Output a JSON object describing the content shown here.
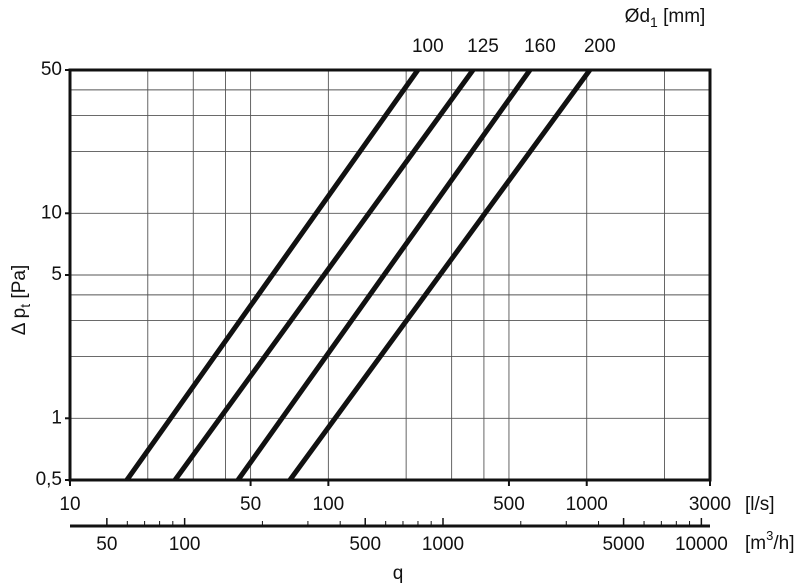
{
  "chart_data": {
    "type": "line",
    "log_x": true,
    "log_y": true,
    "xlim": [
      10,
      3000
    ],
    "xticks": [
      10,
      50,
      100,
      500,
      1000,
      3000
    ],
    "xgrid": [
      20,
      30,
      40,
      50,
      100,
      200,
      300,
      400,
      500,
      1000,
      2000
    ],
    "x_unit": "[l/s]",
    "x2lim": [
      36,
      10800
    ],
    "x2ticks": [
      50,
      100,
      500,
      1000,
      5000,
      10000
    ],
    "x2minor": [
      60,
      70,
      80,
      90,
      200,
      300,
      400,
      600,
      700,
      800,
      900,
      2000,
      3000,
      4000,
      6000,
      7000,
      8000,
      9000
    ],
    "x2_unit": {
      "text": "[m",
      "sup": "3",
      "suffix": "/h]"
    },
    "x_label": "q",
    "ylim": [
      0.5,
      50
    ],
    "yticks": [
      {
        "value": 0.5,
        "label": "0,5"
      },
      1,
      5,
      10,
      50
    ],
    "ygrid": [
      1,
      2,
      3,
      4,
      5,
      10,
      20,
      30,
      40
    ],
    "y_label": {
      "text": "Δ p",
      "sub": "t",
      "suffix": " [Pa]"
    },
    "legend_title": {
      "text": "Ød",
      "sub": "1",
      "suffix": " [mm]"
    },
    "series": [
      {
        "name": "100",
        "color": "#111111",
        "x": [
          16.6,
          222
        ],
        "values": [
          0.5,
          50
        ]
      },
      {
        "name": "125",
        "color": "#111111",
        "x": [
          25.5,
          363
        ],
        "values": [
          0.5,
          50
        ]
      },
      {
        "name": "160",
        "color": "#111111",
        "x": [
          44.7,
          603
        ],
        "values": [
          0.5,
          50
        ]
      },
      {
        "name": "200",
        "color": "#111111",
        "x": [
          71,
          1028
        ],
        "values": [
          0.5,
          50
        ]
      }
    ]
  }
}
